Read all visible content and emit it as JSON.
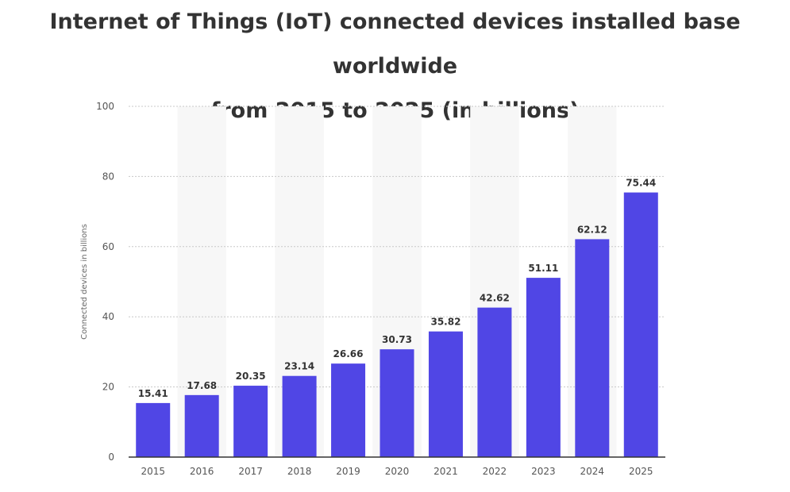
{
  "title_line1": "Internet of Things (IoT) connected devices installed base worldwide",
  "title_line2": "from 2015 to 2025 (in billions)",
  "chart_data": {
    "type": "bar",
    "title": "Internet of Things (IoT) connected devices installed base worldwide from 2015 to 2025 (in billions)",
    "xlabel": "",
    "ylabel": "Connected devices in billions",
    "categories": [
      "2015",
      "2016",
      "2017",
      "2018",
      "2019",
      "2020",
      "2021",
      "2022",
      "2023",
      "2024",
      "2025"
    ],
    "values": [
      15.41,
      17.68,
      20.35,
      23.14,
      26.66,
      30.73,
      35.82,
      42.62,
      51.11,
      62.12,
      75.44
    ],
    "value_labels": [
      "15.41",
      "17.68",
      "20.35",
      "23.14",
      "26.66",
      "30.73",
      "35.82",
      "42.62",
      "51.11",
      "62.12",
      "75.44"
    ],
    "ylim": [
      0,
      100
    ],
    "yticks": [
      "0",
      "20",
      "40",
      "60",
      "80",
      "100"
    ],
    "grid": true,
    "legend": "none",
    "colors": {
      "bar": "#5046e5",
      "band": "#f7f7f7",
      "grid": "#c8c8c8",
      "axis": "#333333"
    }
  }
}
